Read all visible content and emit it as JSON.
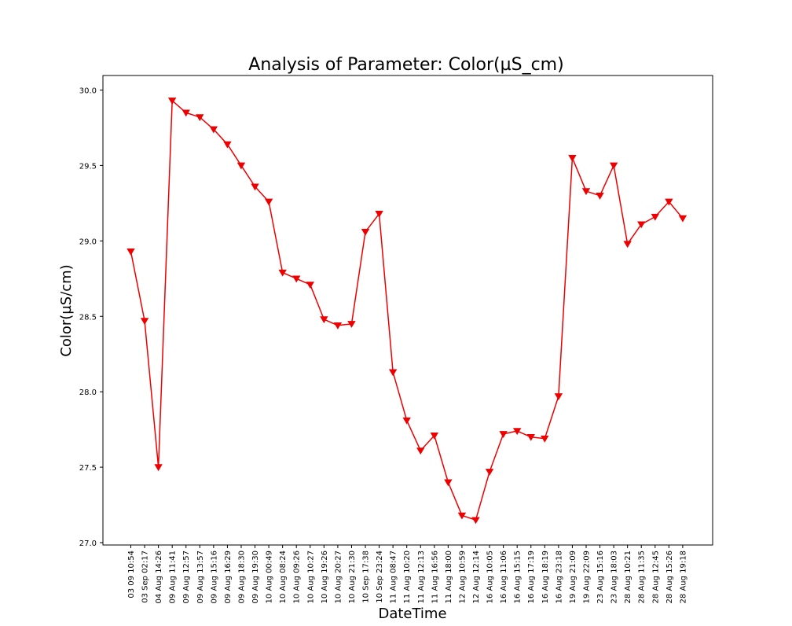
{
  "chart_data": {
    "type": "line",
    "title": "Analysis of Parameter: Color(µS_cm)",
    "xlabel": "DateTime",
    "ylabel": "Color(µS/cm)",
    "ylim": [
      27.0,
      30.1
    ],
    "yticks": [
      27.0,
      27.5,
      28.0,
      28.5,
      29.0,
      29.5,
      30.0
    ],
    "ytick_labels": [
      "27.0",
      "27.5",
      "28.0",
      "28.5",
      "29.0",
      "29.5",
      "30.0"
    ],
    "grid": false,
    "legend": "none",
    "marker": "triangle-down",
    "color": "#ee0000",
    "categories": [
      "03 09 10:54",
      "03 Sep 02:17",
      "04 Aug 14:26",
      "09 Aug 11:41",
      "09 Aug 12:57",
      "09 Aug 13:57",
      "09 Aug 15:16",
      "09 Aug 16:29",
      "09 Aug 18:30",
      "09 Aug 19:30",
      "10 Aug 00:49",
      "10 Aug 08:24",
      "10 Aug 09:26",
      "10 Aug 10:27",
      "10 Aug 19:26",
      "10 Aug 20:27",
      "10 Aug 21:30",
      "10 Sep 17:38",
      "10 Sep 23:24",
      "11 Aug 08:47",
      "11 Aug 10:20",
      "11 Aug 12:13",
      "11 Aug 16:56",
      "11 Aug 18:00",
      "12 Aug 10:59",
      "12 Aug 12:14",
      "16 Aug 10:05",
      "16 Aug 11:06",
      "16 Aug 15:15",
      "16 Aug 17:19",
      "16 Aug 18:19",
      "16 Aug 23:18",
      "19 Aug 21:09",
      "19 Aug 22:09",
      "23 Aug 15:16",
      "23 Aug 18:03",
      "28 Aug 10:21",
      "28 Aug 11:35",
      "28 Aug 12:45",
      "28 Aug 15:26",
      "28 Aug 19:18"
    ],
    "values": [
      28.93,
      28.47,
      27.5,
      29.93,
      29.85,
      29.82,
      29.74,
      29.64,
      29.5,
      29.36,
      29.26,
      28.79,
      28.75,
      28.71,
      28.48,
      28.44,
      28.45,
      29.06,
      29.18,
      28.13,
      27.81,
      27.61,
      27.71,
      27.4,
      27.18,
      27.15,
      27.47,
      27.72,
      27.74,
      27.7,
      27.69,
      27.97,
      29.55,
      29.33,
      29.3,
      29.5,
      28.98,
      29.11,
      29.16,
      29.26,
      29.15
    ]
  }
}
